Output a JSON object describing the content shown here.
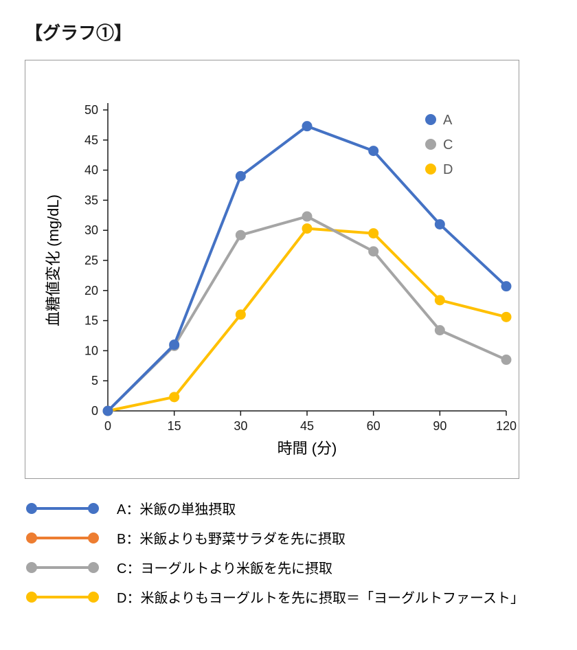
{
  "title": "【グラフ①】",
  "chart": {
    "type": "line",
    "background_color": "#ffffff",
    "border_color": "#9a9a9a",
    "axis_color": "#1a1a1a",
    "tick_color": "#1a1a1a",
    "tick_fontsize": 18,
    "axis_label_fontsize": 22,
    "xlabel": "時間 (分)",
    "ylabel": "血糖値変化 (mg/dL)",
    "x_values": [
      0,
      15,
      30,
      45,
      60,
      90,
      120
    ],
    "x_ticks": [
      0,
      15,
      30,
      45,
      60,
      90,
      120
    ],
    "y_ticks": [
      0,
      5,
      10,
      15,
      20,
      25,
      30,
      35,
      40,
      45,
      50
    ],
    "ylim": [
      0,
      50
    ],
    "line_width": 4,
    "marker_radius": 7.5,
    "series": {
      "A": {
        "label": "A",
        "color": "#4472c4",
        "values": [
          0,
          11,
          39,
          47.3,
          43.2,
          31,
          20.7
        ]
      },
      "C": {
        "label": "C",
        "color": "#a5a5a5",
        "values": [
          0,
          10.8,
          29.2,
          32.3,
          26.5,
          13.4,
          8.5
        ]
      },
      "D": {
        "label": "D",
        "color": "#ffc000",
        "values": [
          0,
          2.3,
          16,
          30.3,
          29.5,
          18.4,
          15.6
        ]
      }
    },
    "chart_legend": {
      "fontsize": 20,
      "text_color": "#595959",
      "marker_radius": 8,
      "items": [
        {
          "key": "A",
          "color": "#4472c4"
        },
        {
          "key": "C",
          "color": "#a5a5a5"
        },
        {
          "key": "D",
          "color": "#ffc000"
        }
      ]
    }
  },
  "legend_descriptions": {
    "line_width": 4,
    "marker_radius": 8,
    "fontsize": 20,
    "text_color": "#000000",
    "items": [
      {
        "key": "A",
        "color": "#4472c4",
        "text": "A：米飯の単独摂取"
      },
      {
        "key": "B",
        "color": "#ed7d31",
        "text": "B：米飯よりも野菜サラダを先に摂取"
      },
      {
        "key": "C",
        "color": "#a5a5a5",
        "text": "C：ヨーグルトより米飯を先に摂取"
      },
      {
        "key": "D",
        "color": "#ffc000",
        "text": "D：米飯よりもヨーグルトを先に摂取＝「ヨーグルトファースト」"
      }
    ]
  }
}
